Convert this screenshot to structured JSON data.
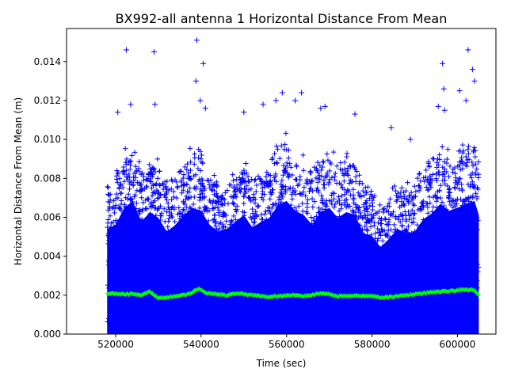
{
  "chart_data": {
    "type": "scatter",
    "title": "BX992-all antenna 1 Horizontal Distance From Mean",
    "xlabel": "Time (sec)",
    "ylabel": "Horizontal Distance From Mean (m)",
    "xlim": [
      508500,
      609000
    ],
    "ylim": [
      0,
      0.0157
    ],
    "x_ticks": [
      520000,
      540000,
      560000,
      580000,
      600000
    ],
    "x_tick_labels": [
      "520000",
      "540000",
      "560000",
      "580000",
      "600000"
    ],
    "y_ticks": [
      0,
      0.002,
      0.004,
      0.006,
      0.008,
      0.01,
      0.012,
      0.014
    ],
    "y_tick_labels": [
      "0.000",
      "0.002",
      "0.004",
      "0.006",
      "0.008",
      "0.010",
      "0.012",
      "0.014"
    ],
    "grid": false,
    "series": [
      {
        "marker": "+",
        "color": "#0000ff",
        "envelope": [
          [
            518000,
            0.0075
          ],
          [
            520000,
            0.0078
          ],
          [
            522000,
            0.009
          ],
          [
            524000,
            0.0095
          ],
          [
            526000,
            0.008
          ],
          [
            528000,
            0.0087
          ],
          [
            530000,
            0.0083
          ],
          [
            532000,
            0.0073
          ],
          [
            534000,
            0.0078
          ],
          [
            536000,
            0.0085
          ],
          [
            538000,
            0.009
          ],
          [
            540000,
            0.0088
          ],
          [
            542000,
            0.0078
          ],
          [
            544000,
            0.0073
          ],
          [
            546000,
            0.0075
          ],
          [
            548000,
            0.008
          ],
          [
            550000,
            0.0085
          ],
          [
            552000,
            0.0076
          ],
          [
            554000,
            0.008
          ],
          [
            556000,
            0.0083
          ],
          [
            558000,
            0.0092
          ],
          [
            560000,
            0.0095
          ],
          [
            562000,
            0.0088
          ],
          [
            564000,
            0.0085
          ],
          [
            566000,
            0.0078
          ],
          [
            568000,
            0.0087
          ],
          [
            570000,
            0.009
          ],
          [
            572000,
            0.0083
          ],
          [
            574000,
            0.0087
          ],
          [
            576000,
            0.0085
          ],
          [
            578000,
            0.0072
          ],
          [
            580000,
            0.007
          ],
          [
            582000,
            0.0062
          ],
          [
            584000,
            0.0068
          ],
          [
            586000,
            0.0075
          ],
          [
            588000,
            0.0072
          ],
          [
            590000,
            0.0073
          ],
          [
            592000,
            0.0082
          ],
          [
            594000,
            0.0086
          ],
          [
            596000,
            0.0093
          ],
          [
            598000,
            0.0088
          ],
          [
            600000,
            0.009
          ],
          [
            602000,
            0.0093
          ],
          [
            604000,
            0.0095
          ],
          [
            605000,
            0.0085
          ]
        ],
        "outliers": [
          [
            522500,
            0.0146
          ],
          [
            529000,
            0.0145
          ],
          [
            539000,
            0.0151
          ],
          [
            538800,
            0.013
          ],
          [
            540500,
            0.0139
          ],
          [
            559000,
            0.0124
          ],
          [
            562000,
            0.012
          ],
          [
            563500,
            0.0124
          ],
          [
            557500,
            0.012
          ],
          [
            596500,
            0.0139
          ],
          [
            602500,
            0.0146
          ],
          [
            603500,
            0.0136
          ],
          [
            604000,
            0.013
          ],
          [
            596800,
            0.0126
          ],
          [
            523500,
            0.0118
          ],
          [
            529200,
            0.0118
          ],
          [
            539800,
            0.012
          ],
          [
            541000,
            0.0116
          ],
          [
            550000,
            0.0114
          ],
          [
            554500,
            0.0118
          ],
          [
            568000,
            0.0116
          ],
          [
            569000,
            0.0117
          ],
          [
            576000,
            0.0113
          ],
          [
            595500,
            0.0117
          ],
          [
            600500,
            0.0125
          ],
          [
            602000,
            0.012
          ],
          [
            520500,
            0.0114
          ],
          [
            584500,
            0.0106
          ],
          [
            589000,
            0.01
          ],
          [
            597000,
            0.0115
          ]
        ]
      },
      {
        "marker": "+",
        "color": "#00ff00",
        "points": [
          [
            518000,
            0.0021
          ],
          [
            520000,
            0.00208
          ],
          [
            522000,
            0.00205
          ],
          [
            524000,
            0.00207
          ],
          [
            526000,
            0.00202
          ],
          [
            528000,
            0.00218
          ],
          [
            530000,
            0.00185
          ],
          [
            532000,
            0.00188
          ],
          [
            534000,
            0.00195
          ],
          [
            536000,
            0.002
          ],
          [
            538000,
            0.00215
          ],
          [
            539500,
            0.00235
          ],
          [
            541000,
            0.0021
          ],
          [
            544000,
            0.00205
          ],
          [
            546000,
            0.002
          ],
          [
            548000,
            0.0021
          ],
          [
            550000,
            0.00205
          ],
          [
            552000,
            0.002
          ],
          [
            554000,
            0.00195
          ],
          [
            556000,
            0.0019
          ],
          [
            558000,
            0.00195
          ],
          [
            560000,
            0.00198
          ],
          [
            562000,
            0.002
          ],
          [
            564000,
            0.00195
          ],
          [
            566000,
            0.002
          ],
          [
            568000,
            0.0021
          ],
          [
            570000,
            0.00205
          ],
          [
            572000,
            0.00195
          ],
          [
            574000,
            0.00195
          ],
          [
            576000,
            0.00198
          ],
          [
            578000,
            0.00195
          ],
          [
            580000,
            0.00195
          ],
          [
            582000,
            0.00188
          ],
          [
            584000,
            0.0019
          ],
          [
            586000,
            0.00195
          ],
          [
            588000,
            0.002
          ],
          [
            590000,
            0.00205
          ],
          [
            592000,
            0.0021
          ],
          [
            594000,
            0.00215
          ],
          [
            596000,
            0.00218
          ],
          [
            598000,
            0.0022
          ],
          [
            600000,
            0.00225
          ],
          [
            602000,
            0.00228
          ],
          [
            604000,
            0.00225
          ],
          [
            605000,
            0.002
          ]
        ]
      }
    ]
  }
}
